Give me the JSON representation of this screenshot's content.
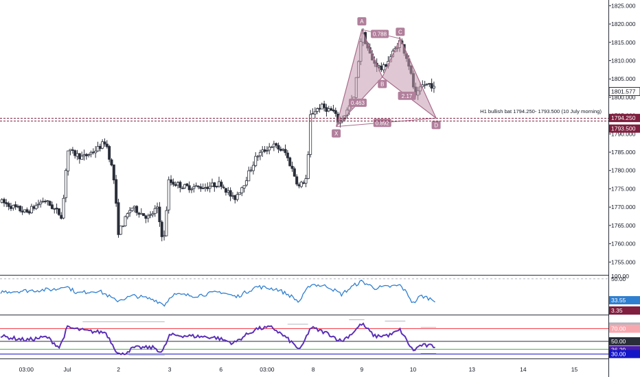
{
  "chart_data": [
    {
      "type": "candlestick",
      "panel": "price",
      "x_ticks": [
        {
          "label": "03:00",
          "t": 0.5
        },
        {
          "label": "Jul",
          "t": 1.3
        },
        {
          "label": "2",
          "t": 2.3
        },
        {
          "label": "3",
          "t": 3.3
        },
        {
          "label": "6",
          "t": 4.3
        },
        {
          "label": "03:00",
          "t": 5.2
        },
        {
          "label": "8",
          "t": 6.1
        },
        {
          "label": "9",
          "t": 7.05
        },
        {
          "label": "10",
          "t": 8.05
        },
        {
          "label": "13",
          "t": 9.2
        },
        {
          "label": "14",
          "t": 10.2
        },
        {
          "label": "15",
          "t": 11.2
        }
      ],
      "x_range": [
        0,
        11.85
      ],
      "y_range": [
        1751.5,
        1826
      ],
      "y_ticks": [
        1755,
        1760,
        1765,
        1770,
        1775,
        1780,
        1785,
        1790,
        1795,
        1800,
        1805,
        1810,
        1815,
        1820,
        1825
      ],
      "y_tick_labels": [
        "1755.000",
        "1760.000",
        "1765.000",
        "1770.000",
        "1775.000",
        "1780.000",
        "1785.000",
        "1790.000",
        "1795.000",
        "1800.000",
        "1805.000",
        "1810.000",
        "1815.000",
        "1820.000",
        "1825.000"
      ],
      "t_end": 8.48,
      "last_price": "1801.577",
      "last_price_value": 1801.577,
      "path_points": [
        [
          0.0,
          1771.5
        ],
        [
          0.5,
          1768.5
        ],
        [
          0.85,
          1772.0
        ],
        [
          1.2,
          1767.5
        ],
        [
          1.3,
          1785.5
        ],
        [
          1.6,
          1783.5
        ],
        [
          1.9,
          1786.0
        ],
        [
          2.05,
          1788.0
        ],
        [
          2.2,
          1779.0
        ],
        [
          2.3,
          1763.0
        ],
        [
          2.55,
          1770.0
        ],
        [
          2.9,
          1767.0
        ],
        [
          3.05,
          1770.0
        ],
        [
          3.18,
          1760.0
        ],
        [
          3.28,
          1777.0
        ],
        [
          3.6,
          1775.5
        ],
        [
          4.0,
          1775.5
        ],
        [
          4.3,
          1776.5
        ],
        [
          4.55,
          1772.0
        ],
        [
          4.75,
          1776.5
        ],
        [
          5.0,
          1784.0
        ],
        [
          5.3,
          1787.0
        ],
        [
          5.55,
          1785.0
        ],
        [
          5.7,
          1780.0
        ],
        [
          5.82,
          1775.5
        ],
        [
          5.98,
          1778.0
        ],
        [
          6.05,
          1795.5
        ],
        [
          6.25,
          1797.5
        ],
        [
          6.5,
          1796.0
        ],
        [
          6.6,
          1793.0
        ],
        [
          6.75,
          1796.0
        ],
        [
          6.9,
          1800.0
        ],
        [
          7.05,
          1818.0
        ],
        [
          7.25,
          1810.0
        ],
        [
          7.45,
          1807.5
        ],
        [
          7.65,
          1812.0
        ],
        [
          7.8,
          1815.5
        ],
        [
          7.95,
          1810.0
        ],
        [
          8.1,
          1800.0
        ],
        [
          8.25,
          1803.5
        ],
        [
          8.4,
          1803.5
        ],
        [
          8.48,
          1802.0
        ]
      ],
      "harmonic_pattern": {
        "name": "bat",
        "points": [
          {
            "label": "X",
            "t": 6.55,
            "price": 1792.0
          },
          {
            "label": "A",
            "t": 7.05,
            "price": 1818.5
          },
          {
            "label": "B",
            "t": 7.45,
            "price": 1805.5
          },
          {
            "label": "C",
            "t": 7.8,
            "price": 1816.0
          },
          {
            "label": "D",
            "t": 8.5,
            "price": 1794.3
          }
        ],
        "ratios": [
          {
            "label": "0.788",
            "t": 7.4,
            "price": 1817.3
          },
          {
            "label": "0.463",
            "t": 6.97,
            "price": 1798.5
          },
          {
            "label": "2.17",
            "t": 7.93,
            "price": 1800.4
          },
          {
            "label": "0.892",
            "t": 7.45,
            "price": 1793.0
          }
        ]
      },
      "zone": {
        "annotation": "H1 bullish bat 1794.250- 1793.500 (10 July morning)",
        "upper": 1794.25,
        "lower": 1793.5,
        "upper_label": "1794.250",
        "lower_label": "1793.500"
      },
      "colors": {
        "bull": "#2a2e39",
        "bear": "#2a2e39",
        "pattern_fill": "#c49aae",
        "pattern_stroke": "#a86b8a",
        "pattern_label_bg": "#b17f9b",
        "zone_line": "#7b1b3c",
        "zone_label_bg": "#801f3f",
        "price_label_bg": "#ffffff",
        "axis_text": "#131722"
      }
    },
    {
      "type": "line",
      "panel": "oscillator-1",
      "y_range": [
        23,
        52
      ],
      "reference_level": 50,
      "reference_label": "50.00",
      "top_label": "100.00",
      "current_value_label": "33.55",
      "current_value": 33.55,
      "secondary_label": "3.35",
      "path_points": [
        [
          0.0,
          40
        ],
        [
          0.6,
          41
        ],
        [
          1.1,
          42
        ],
        [
          1.25,
          45
        ],
        [
          1.5,
          39
        ],
        [
          1.9,
          41
        ],
        [
          2.1,
          37
        ],
        [
          2.25,
          33
        ],
        [
          2.6,
          37
        ],
        [
          3.0,
          34
        ],
        [
          3.2,
          30
        ],
        [
          3.35,
          38
        ],
        [
          3.8,
          37
        ],
        [
          4.3,
          40
        ],
        [
          4.6,
          36
        ],
        [
          5.0,
          44
        ],
        [
          5.4,
          42
        ],
        [
          5.7,
          36
        ],
        [
          5.82,
          32
        ],
        [
          6.05,
          46
        ],
        [
          6.4,
          44
        ],
        [
          6.65,
          38
        ],
        [
          6.9,
          45
        ],
        [
          7.05,
          48
        ],
        [
          7.3,
          43
        ],
        [
          7.6,
          44
        ],
        [
          7.8,
          45
        ],
        [
          7.95,
          38
        ],
        [
          8.05,
          31
        ],
        [
          8.2,
          37
        ],
        [
          8.48,
          33.55
        ]
      ],
      "colors": {
        "line": "#2f7fd0",
        "reference": "#b2b5be",
        "current_bg": "#2f7fd0",
        "secondary_bg": "#801f3f"
      }
    },
    {
      "type": "line",
      "panel": "oscillator-2",
      "y_range": [
        24,
        90
      ],
      "levels": [
        {
          "value": 70,
          "label": "70.00",
          "color": "#f23645"
        },
        {
          "value": 50,
          "label": "50.00",
          "color": "#2a2e39"
        },
        {
          "value": 30,
          "label": "30.00",
          "color": "#1515c8"
        },
        {
          "value": 37.5,
          "label": "",
          "color": "#4caf50"
        }
      ],
      "value_labels": [
        {
          "value": 73.28,
          "label": "73.28",
          "bg": "#b2b5be"
        },
        {
          "value": 36.29,
          "label": "36.29",
          "bg": "#4a1ea8"
        }
      ],
      "path_points": [
        [
          0.0,
          58
        ],
        [
          0.5,
          52
        ],
        [
          0.9,
          57
        ],
        [
          1.15,
          40
        ],
        [
          1.3,
          72
        ],
        [
          1.7,
          66
        ],
        [
          2.05,
          64
        ],
        [
          2.25,
          36
        ],
        [
          2.35,
          28
        ],
        [
          2.6,
          40
        ],
        [
          3.0,
          40
        ],
        [
          3.15,
          32
        ],
        [
          3.3,
          60
        ],
        [
          3.8,
          58
        ],
        [
          4.2,
          56
        ],
        [
          4.55,
          47
        ],
        [
          4.75,
          58
        ],
        [
          5.0,
          70
        ],
        [
          5.3,
          72
        ],
        [
          5.6,
          54
        ],
        [
          5.85,
          36
        ],
        [
          6.05,
          72
        ],
        [
          6.4,
          62
        ],
        [
          6.65,
          50
        ],
        [
          6.85,
          62
        ],
        [
          7.05,
          78
        ],
        [
          7.3,
          58
        ],
        [
          7.6,
          60
        ],
        [
          7.8,
          68
        ],
        [
          7.95,
          48
        ],
        [
          8.05,
          35
        ],
        [
          8.2,
          44
        ],
        [
          8.48,
          42
        ]
      ],
      "colors": {
        "line": "#5a2fb8"
      }
    }
  ]
}
